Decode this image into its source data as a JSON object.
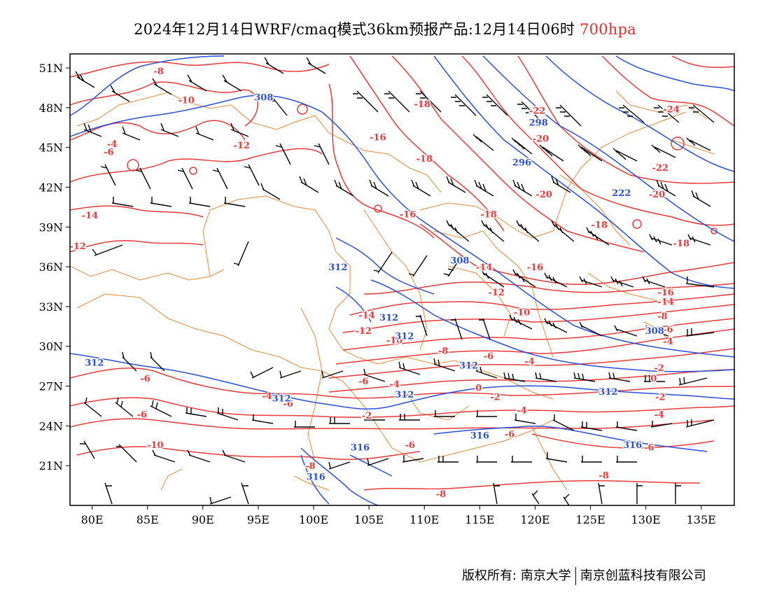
{
  "title": {
    "text": "2024年12月14日WRF/cmaq模式36km预报产品:12月14日06时",
    "level": "700hpa",
    "level_color": "#e03030"
  },
  "axes": {
    "lat_ticks": [
      "51N",
      "48N",
      "45N",
      "42N",
      "39N",
      "36N",
      "33N",
      "30N",
      "27N",
      "24N",
      "21N"
    ],
    "lon_ticks": [
      "80E",
      "85E",
      "90E",
      "95E",
      "100E",
      "105E",
      "110E",
      "115E",
      "120E",
      "125E",
      "130E",
      "135E"
    ]
  },
  "colors": {
    "temperature": "#e83a3a",
    "height": "#2a4fd8",
    "boundary": "#e08a3a",
    "wind": "#000000"
  },
  "temperature_labels": [
    {
      "text": "-8",
      "lon": 86.0,
      "lat": 50.8
    },
    {
      "text": "-10",
      "lon": 88.5,
      "lat": 48.6
    },
    {
      "text": "-12",
      "lon": 93.5,
      "lat": 45.2
    },
    {
      "text": "-4",
      "lon": 81.8,
      "lat": 45.3
    },
    {
      "text": "-6",
      "lon": 81.5,
      "lat": 44.7
    },
    {
      "text": "-14",
      "lon": 79.8,
      "lat": 39.9
    },
    {
      "text": "-12",
      "lon": 78.7,
      "lat": 37.6
    },
    {
      "text": "-18",
      "lon": 109.8,
      "lat": 48.3
    },
    {
      "text": "-16",
      "lon": 105.8,
      "lat": 45.8
    },
    {
      "text": "-18",
      "lon": 110.0,
      "lat": 44.2
    },
    {
      "text": "-16",
      "lon": 108.5,
      "lat": 40.0
    },
    {
      "text": "-22",
      "lon": 120.2,
      "lat": 47.8
    },
    {
      "text": "-20",
      "lon": 120.5,
      "lat": 45.7
    },
    {
      "text": "-24",
      "lon": 132.3,
      "lat": 47.9
    },
    {
      "text": "-22",
      "lon": 131.3,
      "lat": 43.5
    },
    {
      "text": "-20",
      "lon": 120.8,
      "lat": 41.5
    },
    {
      "text": "-20",
      "lon": 131.0,
      "lat": 41.5
    },
    {
      "text": "-18",
      "lon": 115.8,
      "lat": 40.0
    },
    {
      "text": "-18",
      "lon": 125.8,
      "lat": 39.2
    },
    {
      "text": "-18",
      "lon": 133.2,
      "lat": 37.8
    },
    {
      "text": "-14",
      "lon": 115.4,
      "lat": 36.0
    },
    {
      "text": "-16",
      "lon": 120.0,
      "lat": 36.0
    },
    {
      "text": "-16",
      "lon": 131.8,
      "lat": 34.1
    },
    {
      "text": "-14",
      "lon": 131.8,
      "lat": 33.4
    },
    {
      "text": "-12",
      "lon": 116.5,
      "lat": 34.1
    },
    {
      "text": "-10",
      "lon": 118.8,
      "lat": 32.6
    },
    {
      "text": "-14",
      "lon": 104.8,
      "lat": 32.4
    },
    {
      "text": "-12",
      "lon": 104.5,
      "lat": 31.2
    },
    {
      "text": "-10",
      "lon": 107.3,
      "lat": 30.5
    },
    {
      "text": "-8",
      "lon": 131.5,
      "lat": 32.3
    },
    {
      "text": "-6",
      "lon": 132.0,
      "lat": 31.3
    },
    {
      "text": "-4",
      "lon": 132.0,
      "lat": 30.4
    },
    {
      "text": "-8",
      "lon": 111.7,
      "lat": 29.7
    },
    {
      "text": "-6",
      "lon": 115.8,
      "lat": 29.3
    },
    {
      "text": "-4",
      "lon": 119.5,
      "lat": 28.9
    },
    {
      "text": "-2",
      "lon": 131.2,
      "lat": 28.4
    },
    {
      "text": "0",
      "lon": 130.7,
      "lat": 27.6
    },
    {
      "text": "-6",
      "lon": 84.8,
      "lat": 27.6
    },
    {
      "text": "-6",
      "lon": 104.5,
      "lat": 27.4
    },
    {
      "text": "-4",
      "lon": 107.3,
      "lat": 27.2
    },
    {
      "text": "0",
      "lon": 114.9,
      "lat": 26.9
    },
    {
      "text": "-2",
      "lon": 116.4,
      "lat": 26.2
    },
    {
      "text": "-2",
      "lon": 131.3,
      "lat": 26.2
    },
    {
      "text": "-4",
      "lon": 95.8,
      "lat": 26.3
    },
    {
      "text": "-6",
      "lon": 97.7,
      "lat": 25.7
    },
    {
      "text": "-6",
      "lon": 84.5,
      "lat": 24.9
    },
    {
      "text": "-2",
      "lon": 104.8,
      "lat": 24.8
    },
    {
      "text": "-4",
      "lon": 118.8,
      "lat": 25.2
    },
    {
      "text": "-4",
      "lon": 131.2,
      "lat": 24.9
    },
    {
      "text": "-6",
      "lon": 117.7,
      "lat": 23.4
    },
    {
      "text": "-6",
      "lon": 108.7,
      "lat": 22.6
    },
    {
      "text": "-10",
      "lon": 85.7,
      "lat": 22.6
    },
    {
      "text": "-6",
      "lon": 130.3,
      "lat": 22.4
    },
    {
      "text": "-8",
      "lon": 99.7,
      "lat": 21.0
    },
    {
      "text": "-8",
      "lon": 126.2,
      "lat": 20.3
    },
    {
      "text": "-8",
      "lon": 111.5,
      "lat": 18.9
    }
  ],
  "height_labels": [
    {
      "text": "308",
      "lon": 95.5,
      "lat": 48.8
    },
    {
      "text": "298",
      "lon": 120.3,
      "lat": 46.9
    },
    {
      "text": "296",
      "lon": 118.8,
      "lat": 43.9
    },
    {
      "text": "222",
      "lon": 127.8,
      "lat": 41.6
    },
    {
      "text": "308",
      "lon": 113.2,
      "lat": 36.5
    },
    {
      "text": "312",
      "lon": 102.2,
      "lat": 36.0
    },
    {
      "text": "312",
      "lon": 106.8,
      "lat": 32.2
    },
    {
      "text": "312",
      "lon": 108.2,
      "lat": 30.8
    },
    {
      "text": "308",
      "lon": 130.8,
      "lat": 31.2
    },
    {
      "text": "312",
      "lon": 80.2,
      "lat": 28.8
    },
    {
      "text": "312",
      "lon": 114.0,
      "lat": 28.6
    },
    {
      "text": "312",
      "lon": 126.6,
      "lat": 26.6
    },
    {
      "text": "312",
      "lon": 97.1,
      "lat": 26.1
    },
    {
      "text": "312",
      "lon": 108.2,
      "lat": 26.4
    },
    {
      "text": "316",
      "lon": 104.2,
      "lat": 22.4
    },
    {
      "text": "316",
      "lon": 115.0,
      "lat": 23.3
    },
    {
      "text": "316",
      "lon": 128.8,
      "lat": 22.6
    },
    {
      "text": "316",
      "lon": 100.2,
      "lat": 20.2
    }
  ],
  "footer": {
    "left": "版权所有: 南京大学",
    "right": "南京创蓝科技有限公司"
  }
}
